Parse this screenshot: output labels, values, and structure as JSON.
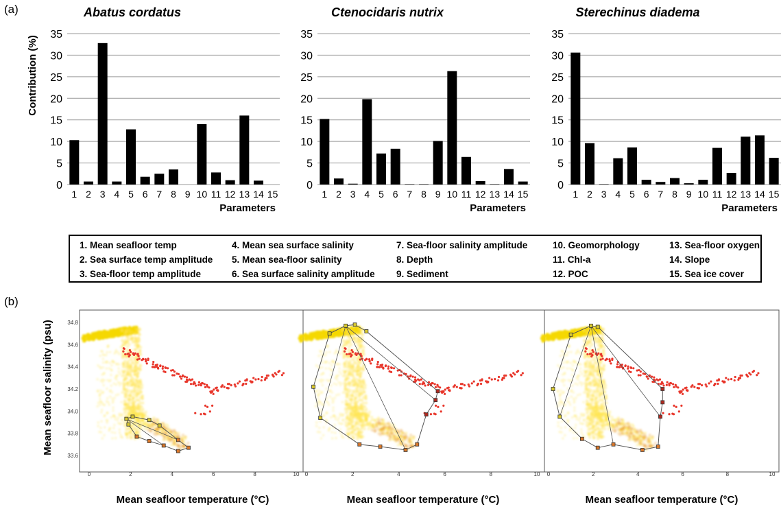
{
  "figure": {
    "panel_a_label": "(a)",
    "panel_b_label": "(b)",
    "legend": [
      "1. Mean seafloor temp",
      "2. Sea surface temp amplitude",
      "3. Sea-floor temp amplitude",
      "4. Mean sea surface salinity",
      "5. Mean sea-floor salinity",
      "6. Sea surface salinity amplitude",
      "7. Sea-floor salinity amplitude",
      "8. Depth",
      "9. Sediment",
      "10. Geomorphology",
      "11. Chl-a",
      "12. POC",
      "13. Sea-floor oxygen",
      "14. Slope",
      "15. Sea ice cover"
    ]
  },
  "colors": {
    "bar": "#000000",
    "grid": "#999999",
    "env_cloud_light": "#ffe34a",
    "env_cloud_dense": "#f4d800",
    "env_cloud_warm": "#e89a2c",
    "occurrence_points": "#e8362b",
    "hull_line": "#555555",
    "hull_marker_yellow": "#d8c830",
    "hull_marker_orange": "#d8782c",
    "hull_marker_red": "#b02a20"
  },
  "chart_data": [
    {
      "type": "bar",
      "title": "Abatus cordatus",
      "ylabel": "Contribution (%)",
      "xlabel": "Parameters",
      "categories": [
        "1",
        "2",
        "3",
        "4",
        "5",
        "6",
        "7",
        "8",
        "9",
        "10",
        "11",
        "12",
        "13",
        "14",
        "15"
      ],
      "values": [
        10.3,
        0.7,
        32.8,
        0.7,
        12.8,
        1.8,
        2.5,
        3.5,
        0.0,
        14.0,
        2.8,
        1.0,
        16.0,
        0.9,
        0.0
      ],
      "ylim": [
        0,
        35
      ],
      "yticks": [
        "0",
        "5",
        "10",
        "15",
        "20",
        "25",
        "30",
        "35"
      ],
      "grid": true
    },
    {
      "type": "bar",
      "title": "Ctenocidaris nutrix",
      "ylabel": "",
      "xlabel": "Parameters",
      "categories": [
        "1",
        "2",
        "3",
        "4",
        "5",
        "6",
        "7",
        "8",
        "9",
        "10",
        "11",
        "12",
        "13",
        "14",
        "15"
      ],
      "values": [
        15.2,
        1.4,
        0.2,
        19.8,
        7.2,
        8.3,
        0.1,
        0.1,
        10.1,
        26.3,
        6.4,
        0.8,
        0.1,
        3.6,
        0.7
      ],
      "ylim": [
        0,
        35
      ],
      "yticks": [
        "0",
        "5",
        "10",
        "15",
        "20",
        "25",
        "30",
        "35"
      ],
      "grid": true
    },
    {
      "type": "bar",
      "title": "Sterechinus diadema",
      "ylabel": "",
      "xlabel": "Parameters",
      "categories": [
        "1",
        "2",
        "3",
        "4",
        "5",
        "6",
        "7",
        "8",
        "9",
        "10",
        "11",
        "12",
        "13",
        "14",
        "15"
      ],
      "values": [
        30.6,
        9.6,
        0.1,
        6.1,
        8.6,
        1.1,
        0.6,
        1.5,
        0.3,
        1.1,
        8.5,
        2.7,
        11.1,
        11.4,
        6.2
      ],
      "ylim": [
        0,
        35
      ],
      "yticks": [
        "0",
        "5",
        "10",
        "15",
        "20",
        "25",
        "30",
        "35"
      ],
      "grid": true
    },
    {
      "type": "scatter",
      "panel": 1,
      "ylabel": "Mean seafloor salinity (psu)",
      "xlabel": "Mean seafloor temperature (°C)",
      "xlim": [
        -0.5,
        10
      ],
      "ylim": [
        33.5,
        34.85
      ],
      "xticks": [
        "0",
        "2",
        "4",
        "6",
        "8",
        "10"
      ],
      "yticks": [
        "33.6",
        "33.8",
        "34.0",
        "34.2",
        "34.4",
        "34.6",
        "34.8"
      ],
      "hull": [
        [
          1.8,
          33.93
        ],
        [
          2.1,
          33.95
        ],
        [
          2.9,
          33.92
        ],
        [
          3.4,
          33.87
        ],
        [
          4.3,
          33.74
        ],
        [
          4.8,
          33.67
        ],
        [
          4.3,
          33.64
        ],
        [
          3.6,
          33.69
        ],
        [
          2.9,
          33.73
        ],
        [
          2.3,
          33.77
        ],
        [
          1.9,
          33.88
        ],
        [
          1.8,
          33.93
        ]
      ]
    },
    {
      "type": "scatter",
      "panel": 2,
      "ylabel": "",
      "xlabel": "Mean seafloor temperature (°C)",
      "xlim": [
        -0.5,
        10
      ],
      "ylim": [
        33.5,
        34.85
      ],
      "xticks": [
        "0",
        "2",
        "4",
        "6",
        "8",
        "10"
      ],
      "yticks": [],
      "hull": [
        [
          1.7,
          34.77
        ],
        [
          2.1,
          34.78
        ],
        [
          2.6,
          34.72
        ],
        [
          5.7,
          34.18
        ],
        [
          5.6,
          34.1
        ],
        [
          5.2,
          33.97
        ],
        [
          4.8,
          33.7
        ],
        [
          4.3,
          33.65
        ],
        [
          3.2,
          33.68
        ],
        [
          2.3,
          33.7
        ],
        [
          0.6,
          33.94
        ],
        [
          0.3,
          34.22
        ],
        [
          1.0,
          34.7
        ],
        [
          1.7,
          34.77
        ]
      ]
    },
    {
      "type": "scatter",
      "panel": 3,
      "ylabel": "",
      "xlabel": "Mean seafloor temperature (°C)",
      "xlim": [
        -0.5,
        10
      ],
      "ylim": [
        33.5,
        34.85
      ],
      "xticks": [
        "0",
        "2",
        "4",
        "6",
        "8",
        "10"
      ],
      "yticks": [],
      "hull": [
        [
          1.9,
          34.77
        ],
        [
          2.2,
          34.76
        ],
        [
          5.1,
          34.2
        ],
        [
          5.1,
          34.08
        ],
        [
          5.0,
          33.95
        ],
        [
          4.9,
          33.68
        ],
        [
          4.2,
          33.65
        ],
        [
          2.9,
          33.7
        ],
        [
          2.2,
          33.67
        ],
        [
          1.5,
          33.75
        ],
        [
          0.5,
          33.95
        ],
        [
          0.2,
          34.2
        ],
        [
          1.0,
          34.69
        ],
        [
          1.9,
          34.77
        ]
      ]
    }
  ]
}
